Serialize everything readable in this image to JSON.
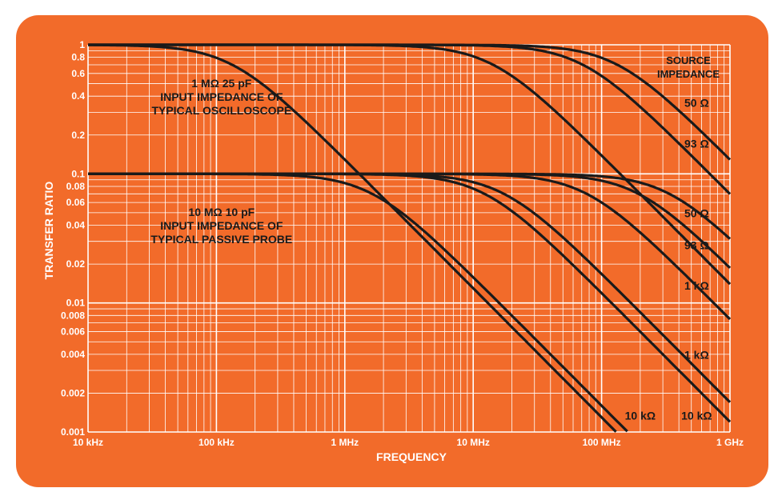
{
  "chart_data": {
    "type": "line",
    "xlabel": "FREQUENCY",
    "ylabel": "TRANSFER RATIO",
    "x_scale": "log",
    "y_scale": "log",
    "xlim": [
      10000,
      1000000000
    ],
    "ylim": [
      0.001,
      1
    ],
    "grid": true,
    "x_ticks": [
      {
        "value": 10000,
        "label": "10 kHz"
      },
      {
        "value": 100000,
        "label": "100 kHz"
      },
      {
        "value": 1000000,
        "label": "1 MHz"
      },
      {
        "value": 10000000,
        "label": "10 MHz"
      },
      {
        "value": 100000000,
        "label": "100 MHz"
      },
      {
        "value": 1000000000,
        "label": "1 GHz"
      }
    ],
    "y_ticks": [
      {
        "value": 1,
        "label": "1"
      },
      {
        "value": 0.8,
        "label": "0.8"
      },
      {
        "value": 0.6,
        "label": "0.6"
      },
      {
        "value": 0.4,
        "label": "0.4"
      },
      {
        "value": 0.2,
        "label": "0.2"
      },
      {
        "value": 0.1,
        "label": "0.1"
      },
      {
        "value": 0.08,
        "label": "0.08"
      },
      {
        "value": 0.06,
        "label": "0.06"
      },
      {
        "value": 0.04,
        "label": "0.04"
      },
      {
        "value": 0.02,
        "label": "0.02"
      },
      {
        "value": 0.01,
        "label": "0.01"
      },
      {
        "value": 0.008,
        "label": "0.008"
      },
      {
        "value": 0.006,
        "label": "0.006"
      },
      {
        "value": 0.004,
        "label": "0.004"
      },
      {
        "value": 0.002,
        "label": "0.002"
      },
      {
        "value": 0.001,
        "label": "0.001"
      }
    ],
    "legend_title": "SOURCE IMPEDANCE",
    "series": [
      {
        "group": "oscilloscope",
        "dc_value": 1.0,
        "corner_freq": 130000,
        "label": ""
      },
      {
        "group": "oscilloscope",
        "dc_value": 1.0,
        "corner_freq": 14000000,
        "label": ""
      },
      {
        "group": "oscilloscope",
        "dc_value": 1.0,
        "corner_freq": 70000000,
        "label": "93 Ω"
      },
      {
        "group": "oscilloscope",
        "dc_value": 1.0,
        "corner_freq": 130000000,
        "label": "50 Ω"
      },
      {
        "group": "probe",
        "dc_value": 0.1,
        "corner_freq": 1600000,
        "label": "10 kΩ"
      },
      {
        "group": "probe",
        "dc_value": 0.1,
        "corner_freq": 12000000,
        "label": "1 kΩ"
      },
      {
        "group": "probe",
        "dc_value": 0.1,
        "corner_freq": 17000000,
        "label": "10 kΩ"
      },
      {
        "group": "probe",
        "dc_value": 0.1,
        "corner_freq": 75000000,
        "label": "1 kΩ"
      },
      {
        "group": "probe",
        "dc_value": 0.1,
        "corner_freq": 190000000,
        "label": "93 Ω"
      },
      {
        "group": "probe",
        "dc_value": 0.1,
        "corner_freq": 330000000,
        "label": "50 Ω"
      }
    ],
    "curve_labels": [
      {
        "text": "50 Ω",
        "x": 550000000,
        "y": 0.33
      },
      {
        "text": "93 Ω",
        "x": 550000000,
        "y": 0.16
      },
      {
        "text": "50 Ω",
        "x": 550000000,
        "y": 0.046
      },
      {
        "text": "93 Ω",
        "x": 550000000,
        "y": 0.026
      },
      {
        "text": "1 kΩ",
        "x": 550000000,
        "y": 0.0127
      },
      {
        "text": "1 kΩ",
        "x": 550000000,
        "y": 0.0037
      },
      {
        "text": "10 kΩ",
        "x": 200000000,
        "y": 0.00125
      },
      {
        "text": "10 kΩ",
        "x": 550000000,
        "y": 0.00125
      }
    ],
    "annotations": [
      {
        "lines": [
          "1 MΩ        25 pF",
          "INPUT IMPEDANCE OF",
          "TYPICAL OSCILLOSCOPE"
        ],
        "x": 95000,
        "y": 0.47
      },
      {
        "lines": [
          "10 MΩ        10 pF",
          "INPUT IMPEDANCE OF",
          "TYPICAL PASSIVE PROBE"
        ],
        "x": 95000,
        "y": 0.047
      }
    ]
  },
  "colors": {
    "background": "#f26b2a",
    "grid": "#ffffff",
    "curve": "#1a1a1a",
    "text": "#ffffff"
  }
}
